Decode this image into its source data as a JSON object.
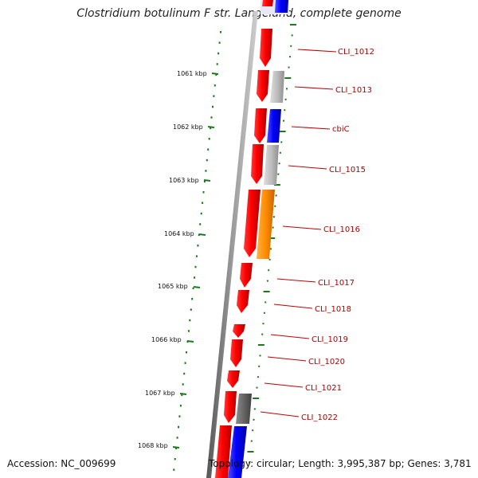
{
  "title": "Clostridium botulinum F str. Langeland, complete genome",
  "footer": {
    "accession": "Accession: NC_009699",
    "topology": "Topology: circular; Length: 3,995,387 bp; Genes: 3,781"
  },
  "kbp_ticks": [
    {
      "label": "1061 kbp"
    },
    {
      "label": "1062 kbp"
    },
    {
      "label": "1063 kbp"
    },
    {
      "label": "1064 kbp"
    },
    {
      "label": "1065 kbp"
    },
    {
      "label": "1066 kbp"
    },
    {
      "label": "1067 kbp"
    },
    {
      "label": "1068 kbp"
    }
  ],
  "genes": [
    {
      "name": "CLI_1012"
    },
    {
      "name": "CLI_1013"
    },
    {
      "name": "cbiC"
    },
    {
      "name": "CLI_1015"
    },
    {
      "name": "CLI_1016"
    },
    {
      "name": "CLI_1017"
    },
    {
      "name": "CLI_1018"
    },
    {
      "name": "CLI_1019"
    },
    {
      "name": "CLI_1020"
    },
    {
      "name": "CLI_1021"
    },
    {
      "name": "CLI_1022"
    }
  ],
  "colors": {
    "cds": "#e00000",
    "blue": "#1010e0",
    "gray": "#b8b8b8",
    "darkgray": "#606060",
    "orange": "#ff8c00",
    "tick": "#1a7a1a",
    "label": "#b00000"
  }
}
